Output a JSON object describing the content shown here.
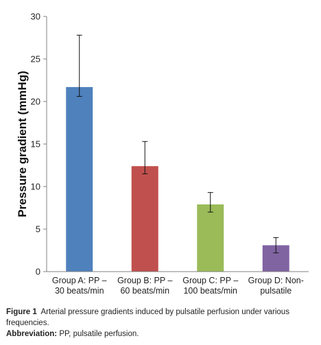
{
  "chart_data": {
    "type": "bar",
    "categories": [
      [
        "Group A: PP –",
        "30 beats/min"
      ],
      [
        "Group B: PP –",
        "60 beats/min"
      ],
      [
        "Group C: PP –",
        "100 beats/min"
      ],
      [
        "Group D: Non-",
        "pulsatile"
      ]
    ],
    "values": [
      21.7,
      12.4,
      7.9,
      3.1
    ],
    "error_low": [
      20.6,
      11.5,
      7.0,
      2.2
    ],
    "error_high": [
      27.8,
      15.3,
      9.3,
      4.0
    ],
    "colors": [
      "#4f81bd",
      "#c0504d",
      "#9bbb59",
      "#8064a2"
    ],
    "ylabel": "Pressure  gradient (mmHg)",
    "ylim": [
      0,
      30
    ],
    "yticks": [
      "0",
      "5",
      "10",
      "15",
      "20",
      "25",
      "30"
    ],
    "grid": false
  },
  "caption": {
    "figure_label": "Figure 1",
    "figure_text": "Arterial pressure gradients induced by pulsatile perfusion under various frequencies.",
    "abbrev_label": "Abbreviation:",
    "abbrev_text": "PP, pulsatile perfusion."
  }
}
